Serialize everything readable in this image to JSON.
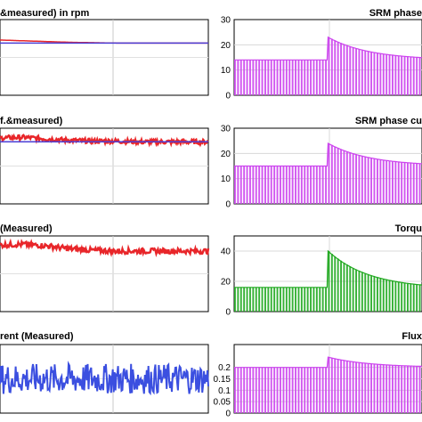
{
  "chart_data": [
    {
      "type": "line",
      "title": "&measured) in rpm",
      "xlabel": "",
      "ylabel": "",
      "ylim": [
        0,
        1
      ],
      "series": [
        {
          "color": "#e8262a",
          "values": [
            0.73,
            0.72,
            0.71,
            0.7,
            0.695,
            0.69,
            0.69,
            0.69,
            0.69,
            0.69
          ],
          "noise": 0.0
        },
        {
          "color": "#4b3fd6",
          "values": [
            0.69,
            0.69,
            0.69,
            0.69,
            0.69,
            0.69,
            0.69,
            0.69,
            0.69,
            0.69
          ],
          "noise": 0.0
        }
      ]
    },
    {
      "type": "line",
      "title": "f.&measured)",
      "xlabel": "",
      "ylabel": "",
      "ylim": [
        0,
        1
      ],
      "series": [
        {
          "color": "#e8262a",
          "values": [
            0.87,
            0.88,
            0.86,
            0.84,
            0.83,
            0.83,
            0.82,
            0.82,
            0.82,
            0.82
          ],
          "noise": 0.03
        },
        {
          "color": "#4b3fd6",
          "values": [
            0.82,
            0.82,
            0.82,
            0.82,
            0.82,
            0.82,
            0.82,
            0.82,
            0.82,
            0.82
          ],
          "noise": 0.0
        }
      ]
    },
    {
      "type": "line",
      "title": "(Measured)",
      "xlabel": "",
      "ylabel": "",
      "ylim": [
        0,
        1
      ],
      "series": [
        {
          "color": "#e8262a",
          "values": [
            0.88,
            0.89,
            0.87,
            0.83,
            0.81,
            0.8,
            0.8,
            0.8,
            0.8,
            0.8
          ],
          "noise": 0.035
        }
      ]
    },
    {
      "type": "line",
      "title": "rent (Measured)",
      "xlabel": "",
      "ylabel": "",
      "ylim": [
        0,
        1
      ],
      "series": [
        {
          "color": "#3b4fe0",
          "values": [
            0.5,
            0.5,
            0.5,
            0.5,
            0.5,
            0.5,
            0.5,
            0.5,
            0.5,
            0.5
          ],
          "noise": 0.22
        }
      ]
    },
    {
      "type": "area",
      "title": "SRM phase",
      "ylim": [
        0,
        30
      ],
      "yticks": [
        "30",
        "20",
        "10",
        "0"
      ],
      "yticks_values": [
        30,
        20,
        10,
        0
      ],
      "x": [
        0,
        0.5,
        0.51,
        1
      ],
      "envelope": {
        "before": 14,
        "peak": 23,
        "after": 14
      },
      "color": "#cc44ee"
    },
    {
      "type": "area",
      "title": "SRM phase cu",
      "ylim": [
        0,
        30
      ],
      "yticks": [
        "30",
        "20",
        "10",
        "0"
      ],
      "yticks_values": [
        30,
        20,
        10,
        0
      ],
      "envelope": {
        "before": 15,
        "peak": 24,
        "after": 15
      },
      "color": "#cc44ee"
    },
    {
      "type": "area",
      "title": "Torqu",
      "ylim": [
        0,
        50
      ],
      "yticks": [
        "40",
        "20",
        "0"
      ],
      "yticks_values": [
        40,
        20,
        0
      ],
      "envelope": {
        "before": 16,
        "peak": 40,
        "after": 15
      },
      "color": "#1fa81f"
    },
    {
      "type": "area",
      "title": "Flux",
      "ylim": [
        0,
        0.3
      ],
      "yticks": [
        "0.2",
        "0.15",
        "0.1",
        "0.05",
        "0"
      ],
      "yticks_values": [
        0.2,
        0.15,
        0.1,
        0.05,
        0
      ],
      "envelope": {
        "before": 0.2,
        "peak": 0.245,
        "after": 0.2
      },
      "color": "#cc44ee"
    }
  ]
}
